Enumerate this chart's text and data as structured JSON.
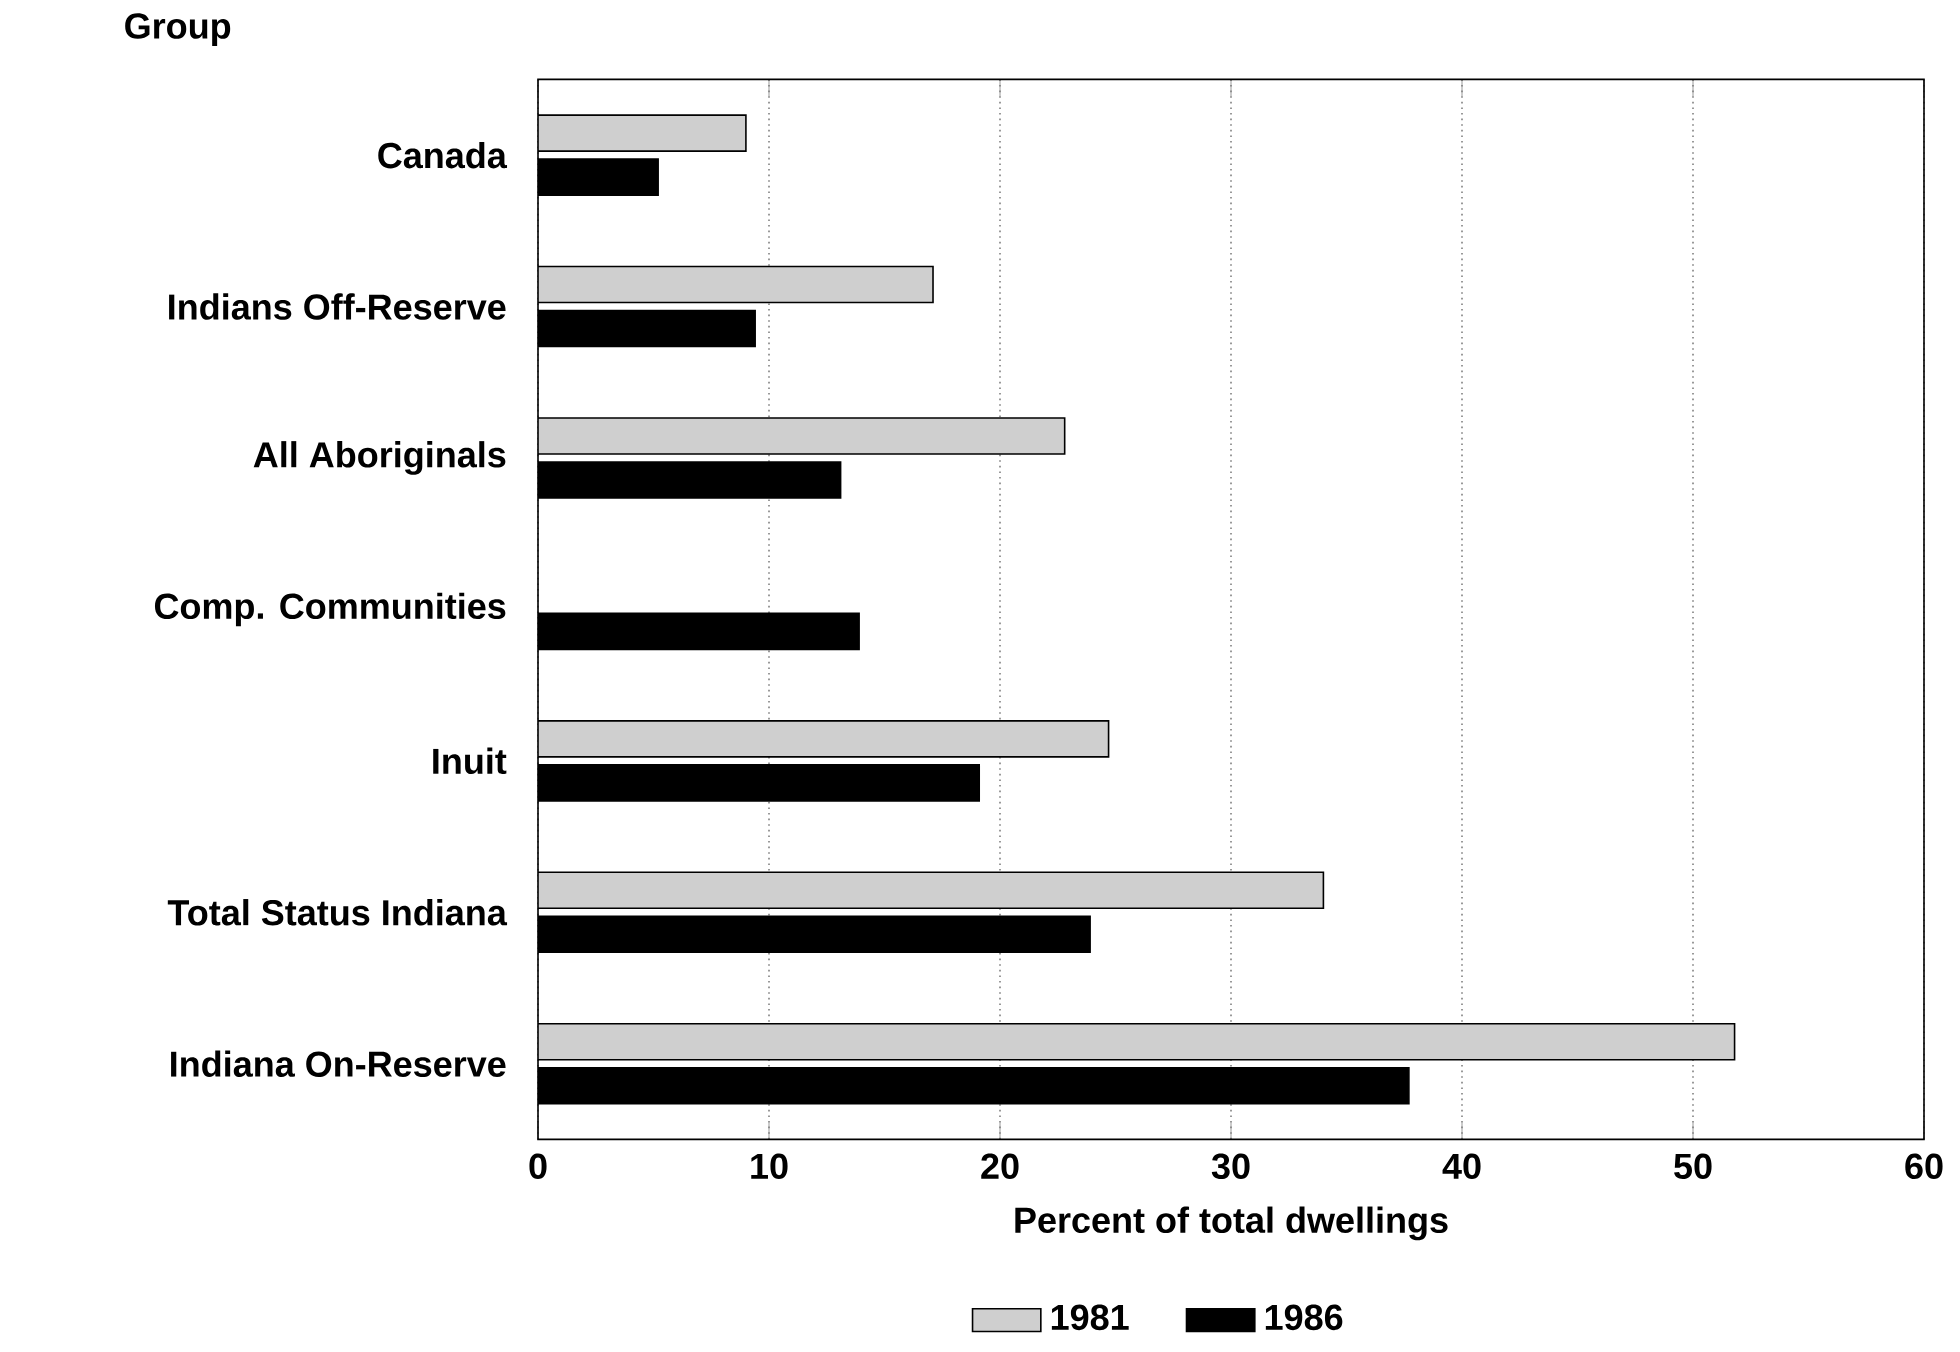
{
  "chart_data": {
    "type": "bar",
    "orientation": "horizontal",
    "ylabel": "Group",
    "xlabel": "Percent of total dwellings",
    "categories": [
      "Canada",
      "Indians Off-Reserve",
      "All Aboriginals",
      "Comp. Communities",
      "Inuit",
      "Total Status Indiana",
      "Indiana On-Reserve"
    ],
    "series": [
      {
        "name": "1981",
        "color": "#cfcfcf",
        "values": [
          9.0,
          17.1,
          22.8,
          null,
          24.7,
          34.0,
          51.8
        ]
      },
      {
        "name": "1986",
        "color": "#000000",
        "values": [
          5.2,
          9.4,
          13.1,
          13.9,
          19.1,
          23.9,
          37.7
        ]
      }
    ],
    "xlim": [
      0,
      60
    ],
    "xticks": [
      0,
      10,
      20,
      30,
      40,
      50,
      60
    ],
    "grid": "x",
    "legend": "bottom"
  }
}
